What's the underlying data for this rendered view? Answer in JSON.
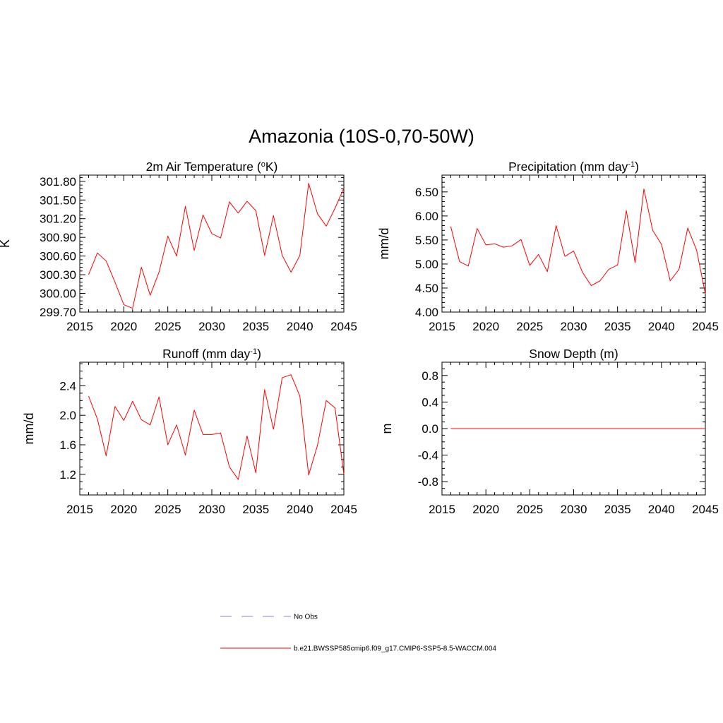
{
  "figure_title": "Amazonia (10S-0,70-50W)",
  "legend": {
    "obs_label": "No Obs",
    "model_label": "b.e21.BWSSP585cmip6.f09_g17.CMIP6-SSP5-8.5-WACCM.004",
    "obs_color": "#9f9fdf",
    "model_color": "#ff0000"
  },
  "chart_data": [
    {
      "id": "temperature",
      "type": "line",
      "title": "2m Air Temperature (oK)",
      "title_main": "2m Air Temperature (",
      "title_sup": "o",
      "title_rest": "K)",
      "ylabel": "K",
      "xlabel": "",
      "xlim": [
        2015,
        2045
      ],
      "ylim": [
        299.7,
        301.9
      ],
      "xticks": [
        "2015",
        "2020",
        "2025",
        "2030",
        "2035",
        "2040",
        "2045"
      ],
      "xtick_values": [
        2015,
        2020,
        2025,
        2030,
        2035,
        2040,
        2045
      ],
      "yticks": [
        "299.70",
        "300.00",
        "300.30",
        "300.60",
        "300.90",
        "301.20",
        "301.50",
        "301.80"
      ],
      "ytick_values": [
        299.7,
        300.0,
        300.3,
        300.6,
        300.9,
        301.2,
        301.5,
        301.8
      ],
      "yminor_step": 0.06,
      "x": [
        2016,
        2017,
        2018,
        2019,
        2020,
        2021,
        2022,
        2023,
        2024,
        2025,
        2026,
        2027,
        2028,
        2029,
        2030,
        2031,
        2032,
        2033,
        2034,
        2035,
        2036,
        2037,
        2038,
        2039,
        2040,
        2041,
        2042,
        2043,
        2044,
        2045
      ],
      "series": [
        {
          "name": "b.e21.BWSSP585cmip6.f09_g17.CMIP6-SSP5-8.5-WACCM.004",
          "values": [
            300.3,
            300.65,
            300.52,
            300.18,
            299.82,
            299.76,
            300.42,
            299.97,
            300.34,
            300.92,
            300.6,
            301.4,
            300.69,
            301.26,
            300.96,
            300.89,
            301.47,
            301.29,
            301.48,
            301.33,
            300.61,
            301.25,
            300.61,
            300.34,
            300.61,
            301.77,
            301.28,
            301.08,
            301.37,
            301.69
          ]
        }
      ]
    },
    {
      "id": "precipitation",
      "type": "line",
      "title": "Precipitation (mm day-1)",
      "title_main": "Precipitation (mm day",
      "title_sup": "-1",
      "title_rest": ")",
      "ylabel": "mm/d",
      "xlabel": "",
      "xlim": [
        2015,
        2045
      ],
      "ylim": [
        4.0,
        6.85
      ],
      "xticks": [
        "2015",
        "2020",
        "2025",
        "2030",
        "2035",
        "2040",
        "2045"
      ],
      "xtick_values": [
        2015,
        2020,
        2025,
        2030,
        2035,
        2040,
        2045
      ],
      "yticks": [
        "4.00",
        "4.50",
        "5.00",
        "5.50",
        "6.00",
        "6.50"
      ],
      "ytick_values": [
        4.0,
        4.5,
        5.0,
        5.5,
        6.0,
        6.5
      ],
      "yminor_step": 0.1,
      "x": [
        2016,
        2017,
        2018,
        2019,
        2020,
        2021,
        2022,
        2023,
        2024,
        2025,
        2026,
        2027,
        2028,
        2029,
        2030,
        2031,
        2032,
        2033,
        2034,
        2035,
        2036,
        2037,
        2038,
        2039,
        2040,
        2041,
        2042,
        2043,
        2044,
        2045
      ],
      "series": [
        {
          "name": "b.e21.BWSSP585cmip6.f09_g17.CMIP6-SSP5-8.5-WACCM.004",
          "values": [
            5.78,
            5.05,
            4.96,
            5.74,
            5.4,
            5.42,
            5.35,
            5.38,
            5.51,
            4.97,
            5.2,
            4.84,
            5.8,
            5.16,
            5.27,
            4.83,
            4.55,
            4.65,
            4.89,
            4.98,
            6.11,
            5.03,
            6.56,
            5.7,
            5.41,
            4.65,
            4.89,
            5.75,
            5.29,
            4.38
          ]
        }
      ]
    },
    {
      "id": "runoff",
      "type": "line",
      "title": "Runoff (mm day-1)",
      "title_main": "Runoff (mm day",
      "title_sup": "-1",
      "title_rest": ")",
      "ylabel": "mm/d",
      "xlabel": "",
      "xlim": [
        2015,
        2045
      ],
      "ylim": [
        0.92,
        2.72
      ],
      "xticks": [
        "2015",
        "2020",
        "2025",
        "2030",
        "2035",
        "2040",
        "2045"
      ],
      "xtick_values": [
        2015,
        2020,
        2025,
        2030,
        2035,
        2040,
        2045
      ],
      "yticks": [
        "1.2",
        "1.6",
        "2.0",
        "2.4"
      ],
      "ytick_values": [
        1.2,
        1.6,
        2.0,
        2.4
      ],
      "yminor_step": 0.1,
      "x": [
        2016,
        2017,
        2018,
        2019,
        2020,
        2021,
        2022,
        2023,
        2024,
        2025,
        2026,
        2027,
        2028,
        2029,
        2030,
        2031,
        2032,
        2033,
        2034,
        2035,
        2036,
        2037,
        2038,
        2039,
        2040,
        2041,
        2042,
        2043,
        2044,
        2045
      ],
      "series": [
        {
          "name": "b.e21.BWSSP585cmip6.f09_g17.CMIP6-SSP5-8.5-WACCM.004",
          "values": [
            2.26,
            1.95,
            1.45,
            2.12,
            1.93,
            2.19,
            1.94,
            1.87,
            2.25,
            1.6,
            1.87,
            1.46,
            2.07,
            1.74,
            1.74,
            1.76,
            1.3,
            1.13,
            1.72,
            1.22,
            2.35,
            1.81,
            2.51,
            2.55,
            2.26,
            1.19,
            1.59,
            2.2,
            2.1,
            1.2
          ]
        }
      ]
    },
    {
      "id": "snowdepth",
      "type": "line",
      "title": "Snow Depth (m)",
      "title_main": "Snow Depth (m)",
      "title_sup": "",
      "title_rest": "",
      "ylabel": "m",
      "xlabel": "",
      "xlim": [
        2015,
        2045
      ],
      "ylim": [
        -1.0,
        1.0
      ],
      "xticks": [
        "2015",
        "2020",
        "2025",
        "2030",
        "2035",
        "2040",
        "2045"
      ],
      "xtick_values": [
        2015,
        2020,
        2025,
        2030,
        2035,
        2040,
        2045
      ],
      "yticks": [
        "-0.8",
        "-0.4",
        "0.0",
        "0.4",
        "0.8"
      ],
      "ytick_values": [
        -0.8,
        -0.4,
        0.0,
        0.4,
        0.8
      ],
      "yminor_step": 0.1,
      "x": [
        2016,
        2017,
        2018,
        2019,
        2020,
        2021,
        2022,
        2023,
        2024,
        2025,
        2026,
        2027,
        2028,
        2029,
        2030,
        2031,
        2032,
        2033,
        2034,
        2035,
        2036,
        2037,
        2038,
        2039,
        2040,
        2041,
        2042,
        2043,
        2044,
        2045
      ],
      "series": [
        {
          "name": "b.e21.BWSSP585cmip6.f09_g17.CMIP6-SSP5-8.5-WACCM.004",
          "values": [
            0,
            0,
            0,
            0,
            0,
            0,
            0,
            0,
            0,
            0,
            0,
            0,
            0,
            0,
            0,
            0,
            0,
            0,
            0,
            0,
            0,
            0,
            0,
            0,
            0,
            0,
            0,
            0,
            0,
            0
          ]
        }
      ]
    }
  ]
}
